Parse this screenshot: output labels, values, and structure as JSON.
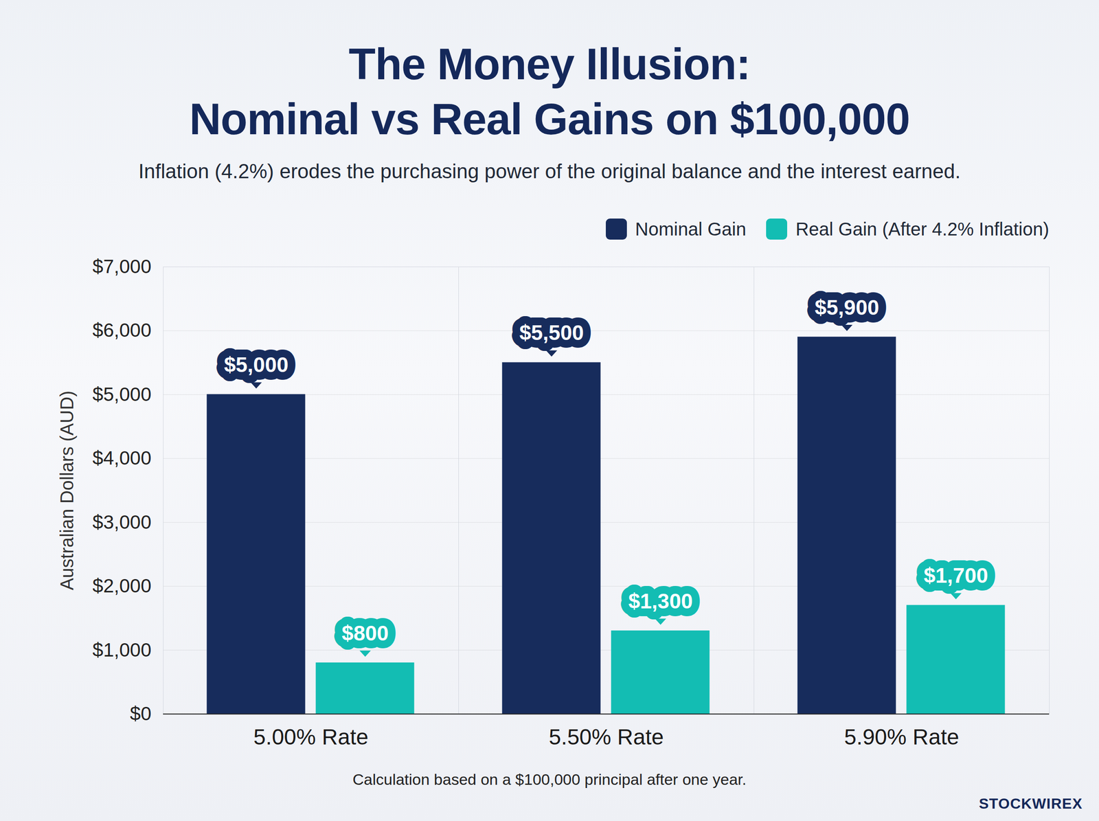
{
  "chart_data": {
    "type": "bar",
    "title": "The Money Illusion: Nominal vs Real Gains on $100,000",
    "subtitle": "Inflation (4.2%) erodes the purchasing power of the original balance and the interest earned.",
    "y_label": "Australian Dollars (AUD)",
    "categories": [
      "5.00% Rate",
      "5.50% Rate",
      "5.90% Rate"
    ],
    "series": [
      {
        "name": "Nominal Gain",
        "color": "#172c5c",
        "values": [
          5000,
          5500,
          5900
        ],
        "value_labels": [
          "$5,000",
          "$5,500",
          "$5,900"
        ]
      },
      {
        "name": "Real Gain (After 4.2% Inflation)",
        "color": "#13bdb3",
        "values": [
          800,
          1300,
          1700
        ],
        "value_labels": [
          "$800",
          "$1,300",
          "$1,700"
        ]
      }
    ],
    "ylim": [
      0,
      7000
    ],
    "yticks": [
      {
        "value": 0,
        "label": "$0"
      },
      {
        "value": 1000,
        "label": "$1,000"
      },
      {
        "value": 2000,
        "label": "$2,000"
      },
      {
        "value": 3000,
        "label": "$3,000"
      },
      {
        "value": 4000,
        "label": "$4,000"
      },
      {
        "value": 5000,
        "label": "$5,000"
      },
      {
        "value": 6000,
        "label": "$6,000"
      },
      {
        "value": 7000,
        "label": "$7,000"
      }
    ],
    "grid": true,
    "legend": "top-right",
    "data_labels": true,
    "annotations": [
      "Calculation based on a $100,000 principal after one year.",
      "STOCKWIREX"
    ]
  }
}
